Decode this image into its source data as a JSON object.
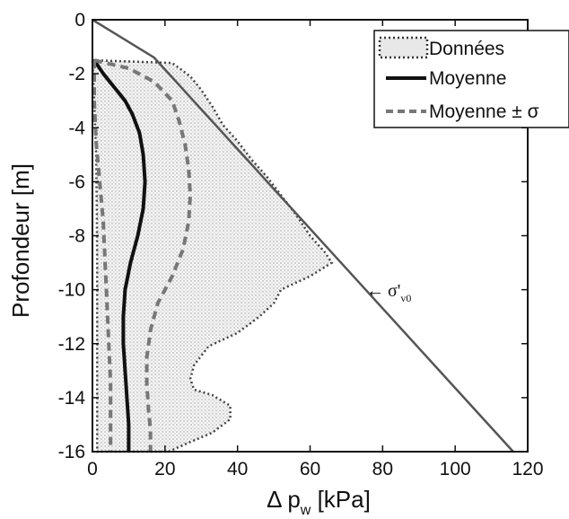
{
  "chart_data": {
    "type": "area",
    "title": "",
    "xlabel_main": "Δ p",
    "xlabel_sub": "w",
    "xlabel_unit": " [kPa]",
    "ylabel": "Profondeur [m]",
    "xlim": [
      0,
      120
    ],
    "ylim": [
      -16,
      0
    ],
    "x_ticks": [
      "0",
      "20",
      "40",
      "60",
      "80",
      "100",
      "120"
    ],
    "y_ticks": [
      "0",
      "-2",
      "-4",
      "-6",
      "-8",
      "-10",
      "-12",
      "-14",
      "-16"
    ],
    "grid": false,
    "legend_position": "top-right",
    "legend": {
      "donnees": "Données",
      "moyenne": "Moyenne",
      "moyenne_sigma": "Moyenne ± σ"
    },
    "annotation": {
      "arrow": "←",
      "symbol": "σ'",
      "subscript": "v0",
      "x": 76,
      "y": -9.9
    },
    "series": [
      {
        "name": "Données",
        "style": "dotted-fill",
        "left_x": [
          0,
          0.5,
          1,
          1.2,
          1.3,
          1.3,
          1.3,
          1.3,
          1.3
        ],
        "right_x": [
          0,
          22,
          27,
          30,
          33,
          36,
          40,
          44,
          48,
          52,
          56,
          60,
          64,
          66,
          60,
          52,
          50,
          46,
          40,
          32,
          28,
          27,
          28,
          33,
          38,
          38,
          33,
          26,
          21
        ],
        "right_y": [
          -1.5,
          -1.6,
          -2.1,
          -2.6,
          -3.2,
          -3.9,
          -4.5,
          -5.2,
          -5.8,
          -6.5,
          -7.2,
          -8.0,
          -8.6,
          -9.0,
          -9.5,
          -10.0,
          -10.5,
          -11.0,
          -11.6,
          -12.1,
          -12.8,
          -13.3,
          -13.7,
          -13.9,
          -14.3,
          -14.8,
          -15.3,
          -15.7,
          -16.0
        ],
        "left_y": [
          -1.5,
          -3,
          -5,
          -7,
          -9,
          -11,
          -13,
          -15,
          -16
        ]
      },
      {
        "name": "Moyenne",
        "style": "solid",
        "x": [
          0.5,
          3,
          6,
          9,
          11,
          13,
          14,
          14.5,
          14,
          12.5,
          10.5,
          9,
          8.5,
          8.5,
          9,
          9.5,
          10,
          10,
          10
        ],
        "y": [
          -1.5,
          -2.0,
          -2.5,
          -3.0,
          -3.5,
          -4.2,
          -5.0,
          -6.0,
          -7.0,
          -8.0,
          -9.0,
          -10.0,
          -11.0,
          -12.0,
          -13.0,
          -14.0,
          -15.0,
          -15.5,
          -16.0
        ]
      },
      {
        "name": "Moyenne + σ",
        "style": "dashed",
        "x": [
          0.5,
          10,
          17,
          22,
          24,
          25.5,
          26.5,
          27,
          26.5,
          25,
          22,
          18,
          16,
          15,
          15,
          15.5,
          16,
          16,
          16
        ],
        "y": [
          -1.5,
          -1.8,
          -2.3,
          -3.0,
          -3.8,
          -4.6,
          -5.5,
          -6.5,
          -7.5,
          -8.5,
          -9.5,
          -10.5,
          -11.5,
          -12.5,
          -13.5,
          -14.5,
          -15.2,
          -15.6,
          -16.0
        ]
      },
      {
        "name": "Moyenne - σ",
        "style": "dashed",
        "x": [
          0.5,
          0.5,
          1,
          2,
          3,
          3.5,
          4,
          4.5,
          5,
          5,
          5
        ],
        "y": [
          -1.5,
          -3.0,
          -4.5,
          -6.0,
          -7.5,
          -9.0,
          -10.5,
          -12.0,
          -13.5,
          -15.0,
          -16.0
        ]
      },
      {
        "name": "σ'v0",
        "style": "solid-gray",
        "x": [
          0,
          17,
          116
        ],
        "y": [
          0,
          -1.4,
          -16.0
        ]
      }
    ]
  }
}
